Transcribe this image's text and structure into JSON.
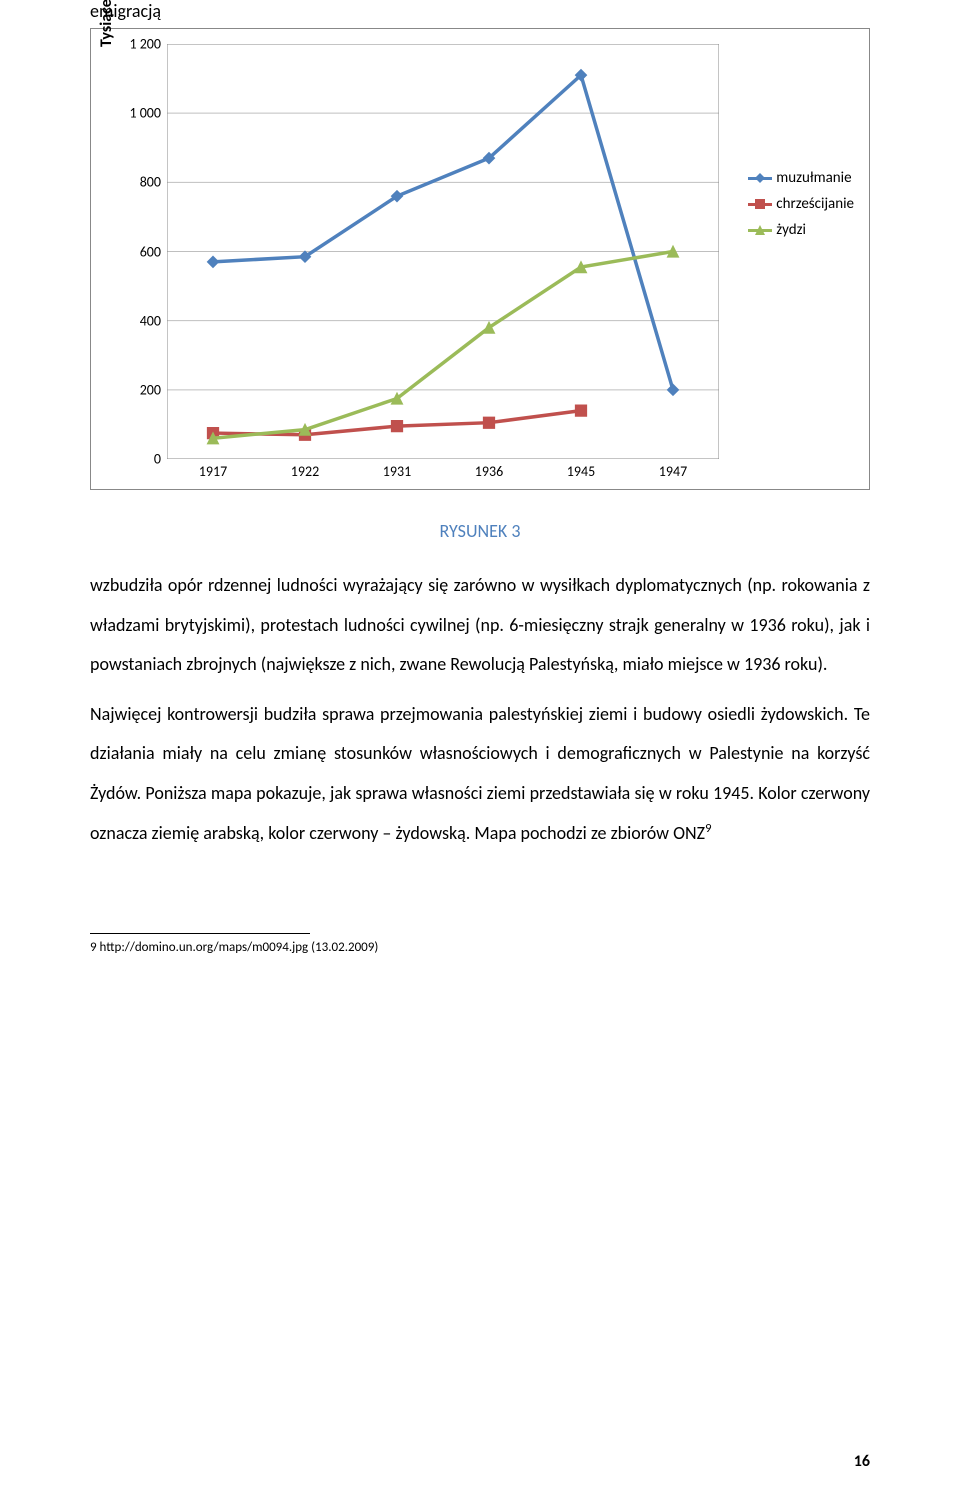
{
  "heading": "emigracją",
  "chart": {
    "type": "line",
    "y_axis_title": "Tysiące",
    "ylim": [
      0,
      1200
    ],
    "ytick_step": 200,
    "ytick_labels": [
      "0",
      "200",
      "400",
      "600",
      "800",
      "1 000",
      "1 200"
    ],
    "categories": [
      "1917",
      "1922",
      "1931",
      "1936",
      "1945",
      "1947"
    ],
    "series": [
      {
        "name": "muzułmanie",
        "color": "#4f81bd",
        "marker": "diamond",
        "values": [
          570,
          585,
          760,
          870,
          1110,
          200
        ]
      },
      {
        "name": "chrześcijanie",
        "color": "#c0504d",
        "marker": "square",
        "values": [
          75,
          70,
          95,
          105,
          140,
          null
        ]
      },
      {
        "name": "żydzi",
        "color": "#9bbb59",
        "marker": "triangle",
        "values": [
          60,
          85,
          175,
          380,
          555,
          600
        ]
      }
    ],
    "line_width": 3.5,
    "marker_size": 9,
    "background_color": "#ffffff",
    "grid_color": "#bfbfbf",
    "axis_color": "#888888",
    "label_fontsize": 14
  },
  "caption": "RYSUNEK 3",
  "body": "wzbudziła opór rdzennej ludności wyrażający się zarówno w wysiłkach dyplomatycznych (np. rokowania z władzami brytyjskimi), protestach ludności cywilnej (np. 6-miesięczny strajk generalny w 1936 roku), jak i powstaniach zbrojnych (największe z nich, zwane Rewolucją Palestyńską, miało miejsce w 1936 roku).\n\nNajwięcej kontrowersji budziła sprawa przejmowania palestyńskiej ziemi i budowy osiedli żydowskich. Te działania miały na celu zmianę stosunków własnościowych i demograficznych w Palestynie na korzyść Żydów. Poniższa mapa pokazuje, jak sprawa własności ziemi przedstawiała się w roku 1945. Kolor czerwony oznacza ziemię arabską, kolor czerwony – żydowską. Mapa pochodzi ze zbiorów ONZ",
  "body_superscript": "9",
  "footnote": "9 http://domino.un.org/maps/m0094.jpg (13.02.2009)",
  "page_number": "16"
}
